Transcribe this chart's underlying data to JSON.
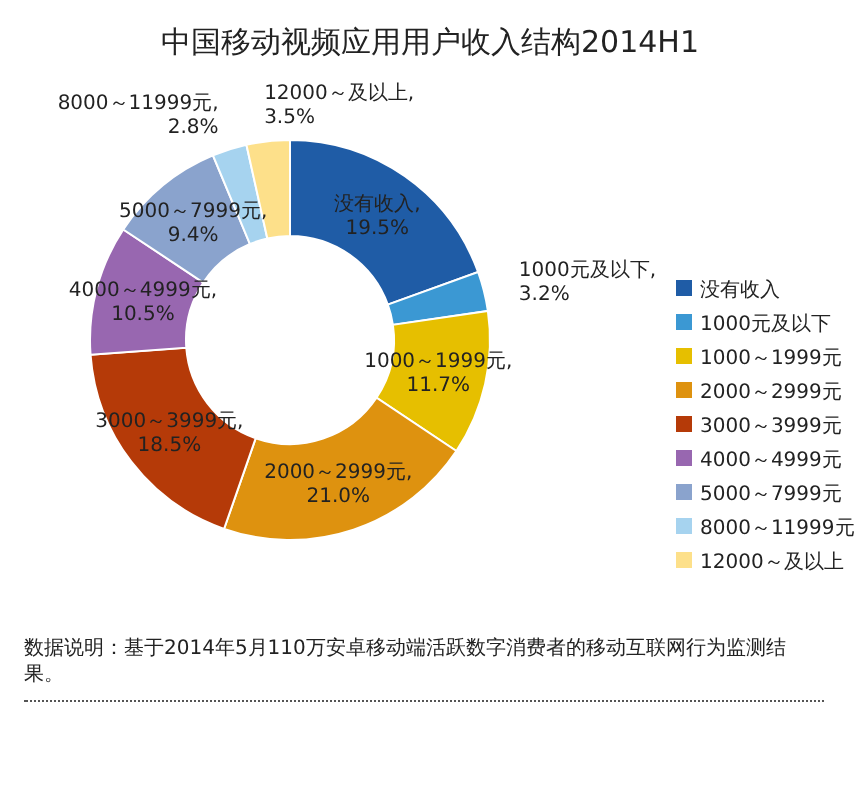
{
  "chart_data": {
    "type": "donut",
    "title": "中国移动视频应用用户收入结构2014H1",
    "categories": [
      "没有收入",
      "1000元及以下",
      "1000～1999元",
      "2000～2999元",
      "3000～3999元",
      "4000～4999元",
      "5000～7999元",
      "8000～11999元",
      "12000～及以上"
    ],
    "values": [
      19.5,
      3.2,
      11.7,
      21.0,
      18.5,
      10.5,
      9.4,
      2.8,
      3.5
    ],
    "colors": [
      "#1f5ca6",
      "#3b98d3",
      "#e6bf00",
      "#de920f",
      "#b53a08",
      "#9867b0",
      "#8aa3cd",
      "#a6d3ef",
      "#fde08a"
    ],
    "value_labels": [
      "没有收入, 19.5%",
      "1000元及以下, 3.2%",
      "1000～1999元, 11.7%",
      "2000～2999元, 21.0%",
      "3000～3999元, 18.5%",
      "4000～4999元, 10.5%",
      "5000～7999元, 9.4%",
      "8000～11999元, 2.8%",
      "12000～及以上, 3.5%"
    ],
    "legend": "right",
    "annotations": [
      "数据说明：基于2014年5月110万安卓移动端活跃数字消费者的移动互联网行为监测结果。"
    ]
  }
}
